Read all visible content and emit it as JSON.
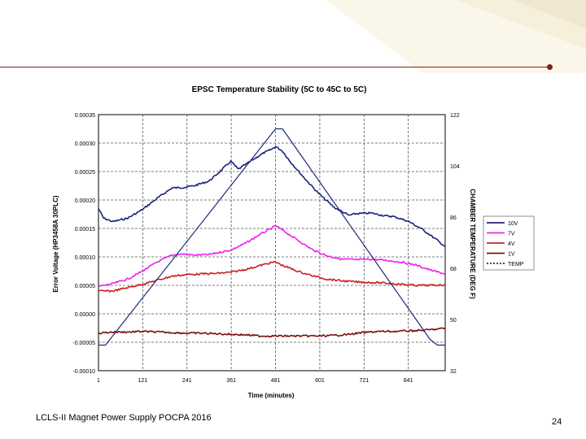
{
  "chart_data": {
    "type": "line",
    "title": "EPSC Temperature Stability (5C to 45C to 5C)",
    "xlabel": "Time (minutes)",
    "ylabel": "Error Voltage (HP3458A 30PLC)",
    "y2label": "CHAMBER TEMPERATURE (DEG F)",
    "x_ticks": [
      "1",
      "121",
      "241",
      "361",
      "481",
      "601",
      "721",
      "841"
    ],
    "xlim": [
      1,
      941
    ],
    "y_ticks": [
      "0.00035",
      "0.00030",
      "0.00025",
      "0.00020",
      "0.00015",
      "0.00010",
      "0.00005",
      "0.00000",
      "-0.00005",
      "-0.00010"
    ],
    "ylim": [
      -0.0001,
      0.00035
    ],
    "y2_ticks": [
      "122",
      "104",
      "86",
      "68",
      "50",
      "32"
    ],
    "y2lim": [
      32,
      122
    ],
    "grid": true,
    "legend_position": "right",
    "series": [
      {
        "name": "10V",
        "axis": "left",
        "color": "#1a237e",
        "x": [
          1,
          15,
          40,
          80,
          120,
          160,
          180,
          200,
          230,
          260,
          300,
          320,
          360,
          380,
          420,
          450,
          470,
          481,
          500,
          520,
          560,
          600,
          640,
          680,
          700,
          740,
          780,
          800,
          840,
          880,
          920,
          941
        ],
        "y": [
          0.000185,
          0.000168,
          0.000162,
          0.000168,
          0.000183,
          0.000203,
          0.000212,
          0.000221,
          0.000222,
          0.000225,
          0.000233,
          0.000244,
          0.000268,
          0.000254,
          0.000271,
          0.000283,
          0.000289,
          0.000294,
          0.000286,
          0.000268,
          0.000238,
          0.00021,
          0.000187,
          0.000173,
          0.000176,
          0.000177,
          0.000172,
          0.000171,
          0.000163,
          0.000148,
          0.000129,
          0.000118
        ]
      },
      {
        "name": "7V",
        "axis": "left",
        "color": "#ee22ee",
        "x": [
          1,
          40,
          80,
          120,
          160,
          200,
          230,
          260,
          300,
          360,
          400,
          440,
          470,
          481,
          500,
          540,
          580,
          620,
          660,
          700,
          740,
          780,
          820,
          860,
          900,
          941
        ],
        "y": [
          4.8e-05,
          5.3e-05,
          6.1e-05,
          7.5e-05,
          9.1e-05,
          0.000103,
          0.000105,
          0.000103,
          0.000104,
          0.000112,
          0.000124,
          0.00014,
          0.00015,
          0.000155,
          0.000147,
          0.00013,
          0.000113,
          0.000102,
          9.6e-05,
          9.5e-05,
          9.6e-05,
          9.4e-05,
          9.1e-05,
          8.6e-05,
          7.7e-05,
          7e-05
        ]
      },
      {
        "name": "4V",
        "axis": "left",
        "color": "#cc2020",
        "x": [
          1,
          40,
          80,
          120,
          160,
          200,
          240,
          280,
          320,
          360,
          400,
          440,
          470,
          481,
          500,
          540,
          580,
          620,
          660,
          700,
          740,
          780,
          820,
          860,
          900,
          941
        ],
        "y": [
          4e-05,
          4e-05,
          4.6e-05,
          5.2e-05,
          5.9e-05,
          6.6e-05,
          6.9e-05,
          7e-05,
          7.1e-05,
          7.3e-05,
          7.8e-05,
          8.5e-05,
          9e-05,
          9.1e-05,
          8.5e-05,
          7.5e-05,
          6.7e-05,
          6.1e-05,
          5.8e-05,
          5.6e-05,
          5.5e-05,
          5.4e-05,
          5.2e-05,
          5e-05,
          5e-05,
          5.1e-05
        ]
      },
      {
        "name": "1V",
        "axis": "left",
        "color": "#7a1010",
        "x": [
          1,
          40,
          80,
          120,
          160,
          200,
          240,
          280,
          320,
          360,
          400,
          440,
          481,
          520,
          560,
          600,
          640,
          680,
          720,
          760,
          800,
          840,
          880,
          920,
          941
        ],
        "y": [
          -3.4e-05,
          -3.2e-05,
          -3.2e-05,
          -3.1e-05,
          -3.2e-05,
          -3.3e-05,
          -3.4e-05,
          -3.4e-05,
          -3.5e-05,
          -3.6e-05,
          -3.7e-05,
          -3.9e-05,
          -3.9e-05,
          -3.9e-05,
          -3.9e-05,
          -3.9e-05,
          -3.8e-05,
          -3.6e-05,
          -3.3e-05,
          -3.1e-05,
          -3.1e-05,
          -3e-05,
          -2.9e-05,
          -2.7e-05,
          -2.5e-05
        ]
      },
      {
        "name": "TEMP",
        "axis": "right",
        "color": "#1e2a78",
        "dashed": false,
        "x": [
          1,
          20,
          481,
          500,
          900,
          920,
          941
        ],
        "y": [
          41,
          41,
          117,
          117,
          43,
          41,
          41
        ]
      }
    ]
  },
  "footer": {
    "text": "LCLS-II Magnet Power Supply POCPA 2016",
    "page": "24"
  }
}
